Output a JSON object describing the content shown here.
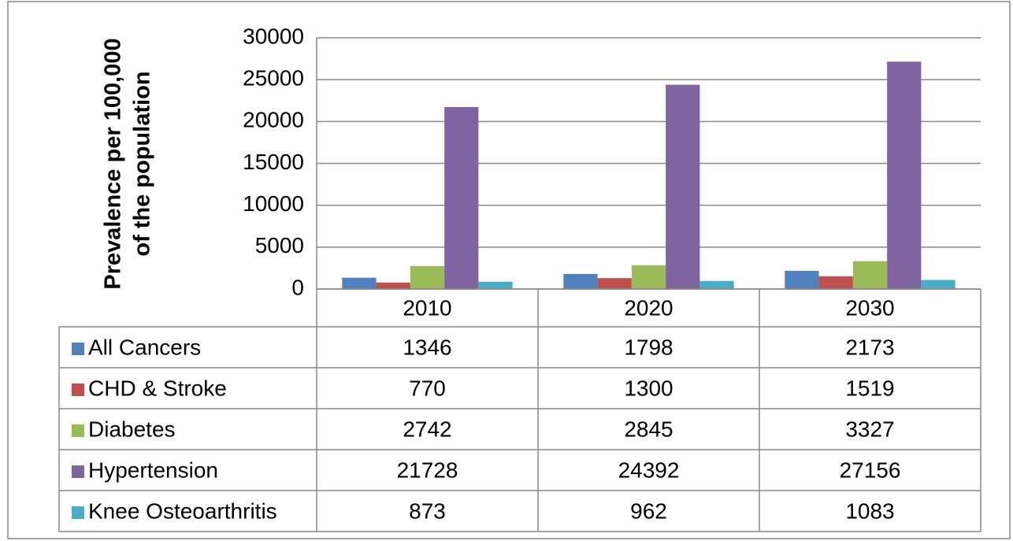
{
  "chart_data": {
    "type": "bar",
    "y_label": [
      "Prevalence per 100,000",
      "of the population"
    ],
    "categories": [
      "2010",
      "2020",
      "2030"
    ],
    "series": [
      {
        "name": "All Cancers",
        "color": "#4f81bd",
        "values": [
          1346,
          1798,
          2173
        ]
      },
      {
        "name": "CHD & Stroke",
        "color": "#c0504d",
        "values": [
          770,
          1300,
          1519
        ]
      },
      {
        "name": "Diabetes",
        "color": "#9bbb59",
        "values": [
          2742,
          2845,
          3327
        ]
      },
      {
        "name": "Hypertension",
        "color": "#8064a2",
        "values": [
          21728,
          24392,
          27156
        ]
      },
      {
        "name": "Knee Osteoarthritis",
        "color": "#4bacc6",
        "values": [
          873,
          962,
          1083
        ]
      }
    ],
    "ylim": [
      0,
      30000
    ],
    "yticks": [
      0,
      5000,
      10000,
      15000,
      20000,
      25000,
      30000
    ],
    "grid": true,
    "data_table": true
  }
}
